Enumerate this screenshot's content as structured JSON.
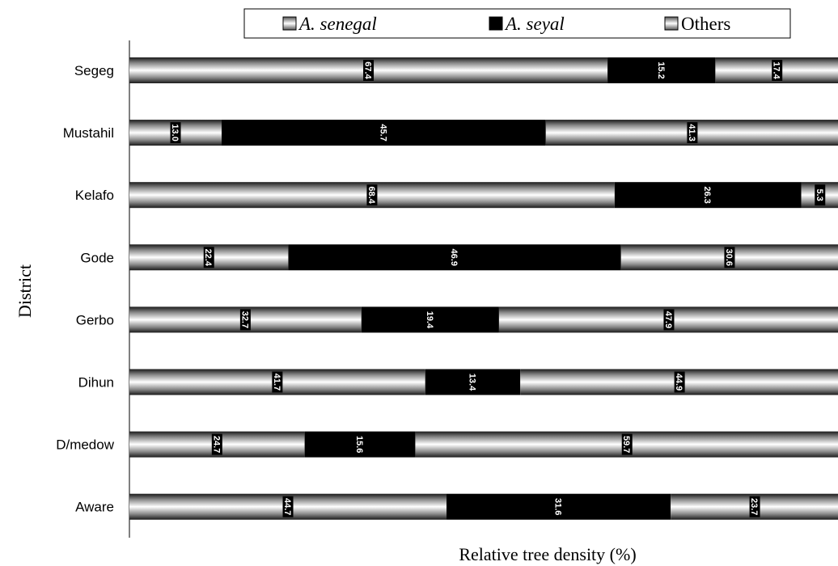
{
  "chart_data": {
    "type": "bar",
    "orientation": "horizontal",
    "stacked": true,
    "xlabel": "Relative tree density (%)",
    "ylabel": "District",
    "xlim": [
      0,
      100
    ],
    "grid": false,
    "legend_position": "top",
    "categories": [
      "Segeg",
      "Mustahil",
      "Kelafo",
      "Gode",
      "Gerbo",
      "Dihun",
      "D/medow",
      "Aware"
    ],
    "series": [
      {
        "name": "A. senegal",
        "fill": "gradient-silver",
        "values": [
          67.4,
          13.0,
          68.4,
          22.4,
          32.7,
          41.7,
          24.7,
          44.7
        ],
        "labels": [
          "67.4",
          "13.0",
          "68.4",
          "22.4",
          "32.7",
          "41.7",
          "24.7",
          "44.7"
        ]
      },
      {
        "name": "A. seyal",
        "fill": "#000000",
        "values": [
          15.2,
          45.7,
          26.3,
          46.9,
          19.4,
          13.4,
          15.6,
          31.6
        ],
        "labels": [
          "15.2",
          "45.7",
          "26.3",
          "46.9",
          "19.4",
          "13.4",
          "15.6",
          "31.6"
        ]
      },
      {
        "name": "Others",
        "fill": "gradient-silver",
        "values": [
          17.4,
          41.3,
          5.3,
          30.6,
          47.9,
          44.9,
          59.7,
          23.7
        ],
        "labels": [
          "17.4",
          "41.3",
          "5.3",
          "30.6",
          "47.9",
          "44.9",
          "59.7",
          "23.7"
        ]
      }
    ],
    "legend": [
      {
        "name": "A. senegal",
        "italic": true
      },
      {
        "name": "A. seyal",
        "italic": true
      },
      {
        "name": "Others",
        "italic": false
      }
    ]
  }
}
